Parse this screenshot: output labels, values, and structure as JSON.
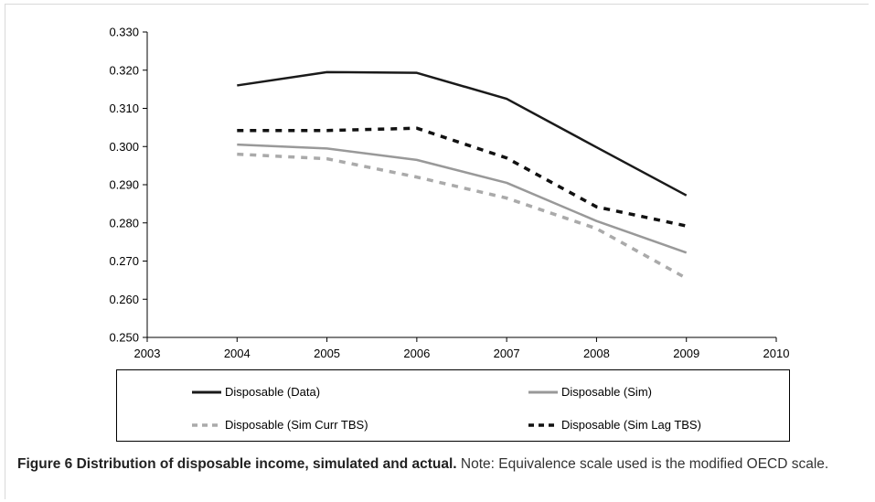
{
  "chart_data": {
    "type": "line",
    "title": "",
    "xlabel": "",
    "ylabel": "",
    "xlim": [
      2003,
      2010
    ],
    "ylim": [
      0.25,
      0.33
    ],
    "x_ticks": [
      "2003",
      "2004",
      "2005",
      "2006",
      "2007",
      "2008",
      "2009",
      "2010"
    ],
    "y_ticks": [
      "0.250",
      "0.260",
      "0.270",
      "0.280",
      "0.290",
      "0.300",
      "0.310",
      "0.320",
      "0.330"
    ],
    "x": [
      2004,
      2005,
      2006,
      2007,
      2008,
      2009
    ],
    "grid": false,
    "legend_position": "bottom",
    "series": [
      {
        "name": "Disposable (Data)",
        "values": [
          0.316,
          0.3195,
          0.3193,
          0.3125,
          0.2998,
          0.2872
        ],
        "color": "#1a1a1a",
        "dash": "solid"
      },
      {
        "name": "Disposable (Sim)",
        "values": [
          0.3005,
          0.2995,
          0.2965,
          0.2905,
          0.2805,
          0.2722
        ],
        "color": "#999999",
        "dash": "solid"
      },
      {
        "name": "Disposable (Sim Curr TBS)",
        "values": [
          0.298,
          0.2968,
          0.292,
          0.2865,
          0.2785,
          0.2655
        ],
        "color": "#aaaaaa",
        "dash": "dashed"
      },
      {
        "name": "Disposable (Sim Lag TBS)",
        "values": [
          0.3042,
          0.3042,
          0.3048,
          0.297,
          0.2842,
          0.2792
        ],
        "color": "#111111",
        "dash": "dashed"
      }
    ]
  },
  "caption": {
    "label": "Figure 6 Distribution of disposable income, simulated and actual.",
    "text": "Note: Equivalence scale used is the modified OECD scale."
  }
}
